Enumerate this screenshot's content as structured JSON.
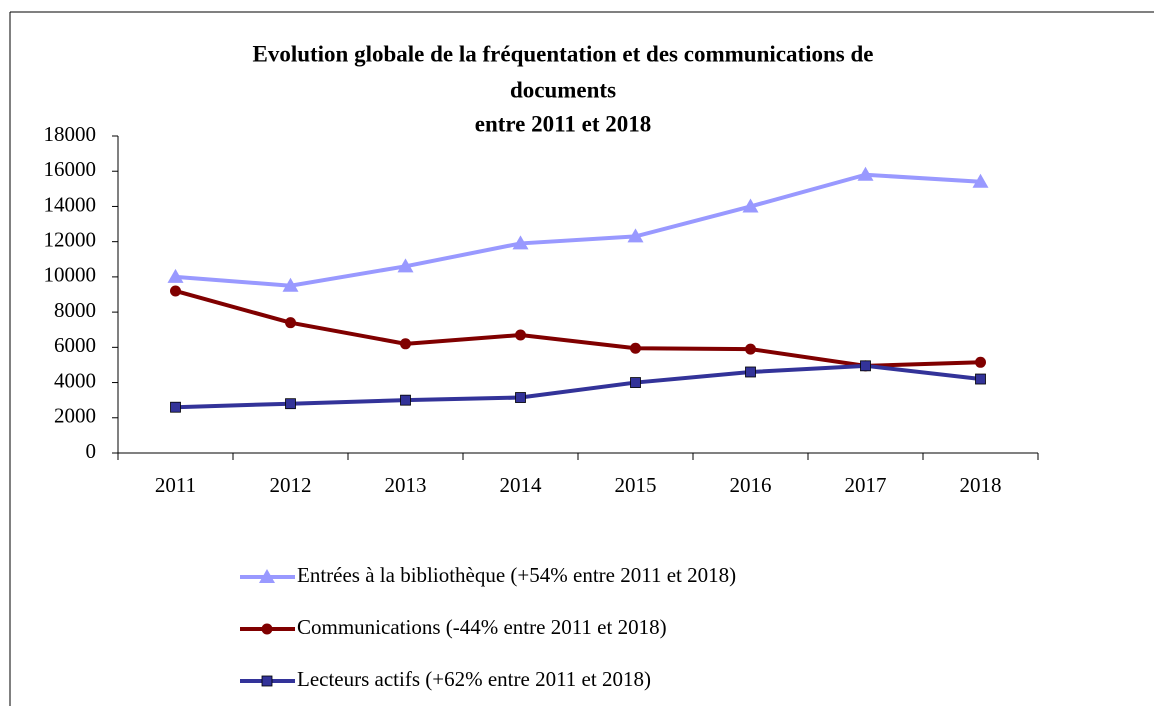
{
  "chart_data": {
    "type": "line",
    "title": [
      "Evolution globale de la fréquentation et des communications de",
      "documents",
      "entre 2011 et 2018"
    ],
    "categories": [
      "2011",
      "2012",
      "2013",
      "2014",
      "2015",
      "2016",
      "2017",
      "2018"
    ],
    "series": [
      {
        "name": "Entrées à la bibliothèque (+54% entre 2011 et 2018)",
        "color": "#9999ff",
        "marker": "triangle",
        "values": [
          10000,
          9500,
          10600,
          11900,
          12300,
          14000,
          15800,
          15400
        ]
      },
      {
        "name": "Communications (-44% entre 2011 et 2018)",
        "color": "#800000",
        "marker": "circle",
        "values": [
          9200,
          7400,
          6200,
          6700,
          5950,
          5900,
          4950,
          5150
        ]
      },
      {
        "name": "Lecteurs actifs (+62% entre 2011 et 2018)",
        "color": "#333399",
        "marker": "square",
        "values": [
          2600,
          2800,
          3000,
          3150,
          4000,
          4600,
          4950,
          4200
        ]
      }
    ],
    "ylim": [
      0,
      18000
    ],
    "yticks": [
      0,
      2000,
      4000,
      6000,
      8000,
      10000,
      12000,
      14000,
      16000,
      18000
    ],
    "legend": "bottom"
  }
}
